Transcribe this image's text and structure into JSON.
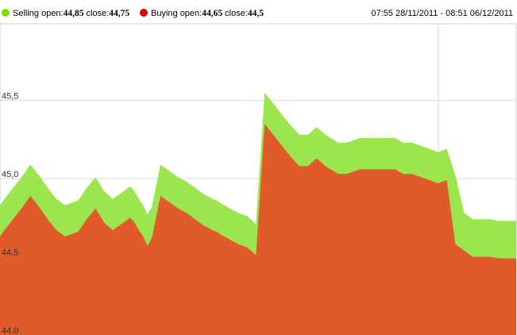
{
  "legend": {
    "selling": {
      "label": "Selling open:",
      "open": "44,85",
      "close_label": "close:",
      "close": "44,75",
      "color": "#7be000"
    },
    "buying": {
      "label": "Buying open:",
      "open": "44,65",
      "close_label": "close:",
      "close": "44,5",
      "color": "#e00000"
    },
    "date_range": "07:55 28/11/2011 - 08:51 06/12/2011"
  },
  "chart_data": {
    "type": "area",
    "title": "",
    "xlabel": "",
    "ylabel": "",
    "ylim": [
      44.0,
      46.0
    ],
    "y_ticks": [
      {
        "value": 44.0,
        "label": "44,0"
      },
      {
        "value": 44.5,
        "label": "44,5"
      },
      {
        "value": 45.0,
        "label": "45,0"
      },
      {
        "value": 45.5,
        "label": "45,5"
      }
    ],
    "grid": true,
    "legend_position": "top-left",
    "x": [
      0,
      2,
      6,
      10,
      14,
      18,
      22,
      26,
      30,
      36,
      40,
      44,
      48,
      52,
      56,
      60,
      62,
      64,
      66,
      68,
      70,
      74,
      78,
      82,
      86,
      90,
      94,
      98,
      100,
      102,
      106,
      110,
      114,
      118,
      122,
      126,
      130,
      134,
      138,
      142,
      146,
      150,
      156,
      160,
      162,
      166,
      170,
      174,
      178,
      182,
      186,
      190,
      194,
      198,
      202,
      206,
      210,
      214,
      218,
      222,
      226,
      230,
      234,
      238
    ],
    "series": [
      {
        "name": "Selling",
        "color": "#9be64e",
        "values": [
          44.83,
          44.87,
          44.94,
          45.01,
          45.09,
          45.02,
          44.94,
          44.87,
          44.83,
          44.86,
          44.94,
          45.01,
          44.92,
          44.87,
          44.91,
          44.95,
          44.92,
          44.87,
          44.83,
          44.77,
          44.82,
          45.09,
          45.05,
          45.01,
          44.98,
          44.94,
          44.9,
          44.87,
          44.86,
          44.84,
          44.81,
          44.78,
          44.76,
          44.71,
          45.55,
          45.48,
          45.41,
          45.34,
          45.28,
          45.28,
          45.33,
          45.28,
          45.23,
          45.23,
          45.24,
          45.26,
          45.26,
          45.26,
          45.26,
          45.26,
          45.23,
          45.23,
          45.21,
          45.19,
          45.17,
          45.19,
          45.02,
          44.78,
          44.74,
          44.74,
          44.74,
          44.73,
          44.73,
          44.73
        ]
      },
      {
        "name": "Buying",
        "color": "#e05a2a",
        "values": [
          44.63,
          44.67,
          44.74,
          44.81,
          44.89,
          44.82,
          44.74,
          44.67,
          44.63,
          44.66,
          44.74,
          44.81,
          44.72,
          44.67,
          44.71,
          44.75,
          44.72,
          44.67,
          44.63,
          44.57,
          44.62,
          44.89,
          44.85,
          44.81,
          44.78,
          44.74,
          44.7,
          44.67,
          44.66,
          44.64,
          44.61,
          44.58,
          44.56,
          44.51,
          45.35,
          45.28,
          45.21,
          45.14,
          45.08,
          45.08,
          45.13,
          45.08,
          45.03,
          45.03,
          45.04,
          45.06,
          45.06,
          45.06,
          45.06,
          45.06,
          45.03,
          45.03,
          45.01,
          44.99,
          44.97,
          44.99,
          44.58,
          44.54,
          44.5,
          44.5,
          44.5,
          44.49,
          44.49,
          44.49
        ]
      }
    ]
  }
}
